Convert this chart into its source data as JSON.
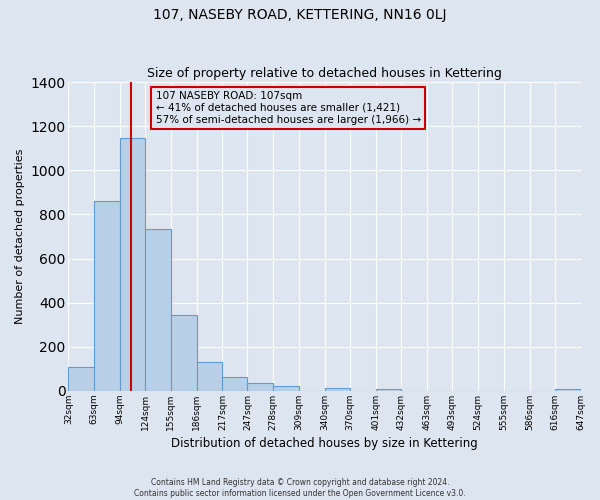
{
  "title": "107, NASEBY ROAD, KETTERING, NN16 0LJ",
  "subtitle": "Size of property relative to detached houses in Kettering",
  "xlabel": "Distribution of detached houses by size in Kettering",
  "ylabel": "Number of detached properties",
  "bin_starts": [
    32,
    63,
    94,
    124,
    155,
    186,
    217,
    247,
    278,
    309,
    340,
    370,
    401,
    432,
    463,
    493,
    524,
    555,
    586,
    616,
    647
  ],
  "bar_heights": [
    107,
    863,
    1148,
    733,
    344,
    130,
    62,
    35,
    20,
    0,
    15,
    0,
    8,
    0,
    0,
    0,
    0,
    0,
    0,
    7,
    0
  ],
  "bin_labels": [
    "32sqm",
    "63sqm",
    "94sqm",
    "124sqm",
    "155sqm",
    "186sqm",
    "217sqm",
    "247sqm",
    "278sqm",
    "309sqm",
    "340sqm",
    "370sqm",
    "401sqm",
    "432sqm",
    "463sqm",
    "493sqm",
    "524sqm",
    "555sqm",
    "586sqm",
    "616sqm",
    "647sqm"
  ],
  "bar_color": "#b8cfe8",
  "bar_edge_color": "#6699cc",
  "bg_color": "#dde5f0",
  "grid_color": "#ffffff",
  "vline_x": 107,
  "vline_color": "#cc0000",
  "annotation_title": "107 NASEBY ROAD: 107sqm",
  "annotation_line1": "← 41% of detached houses are smaller (1,421)",
  "annotation_line2": "57% of semi-detached houses are larger (1,966) →",
  "annotation_box_edge": "#cc0000",
  "ylim": [
    0,
    1400
  ],
  "yticks": [
    0,
    200,
    400,
    600,
    800,
    1000,
    1200,
    1400
  ],
  "footer1": "Contains HM Land Registry data © Crown copyright and database right 2024.",
  "footer2": "Contains public sector information licensed under the Open Government Licence v3.0."
}
